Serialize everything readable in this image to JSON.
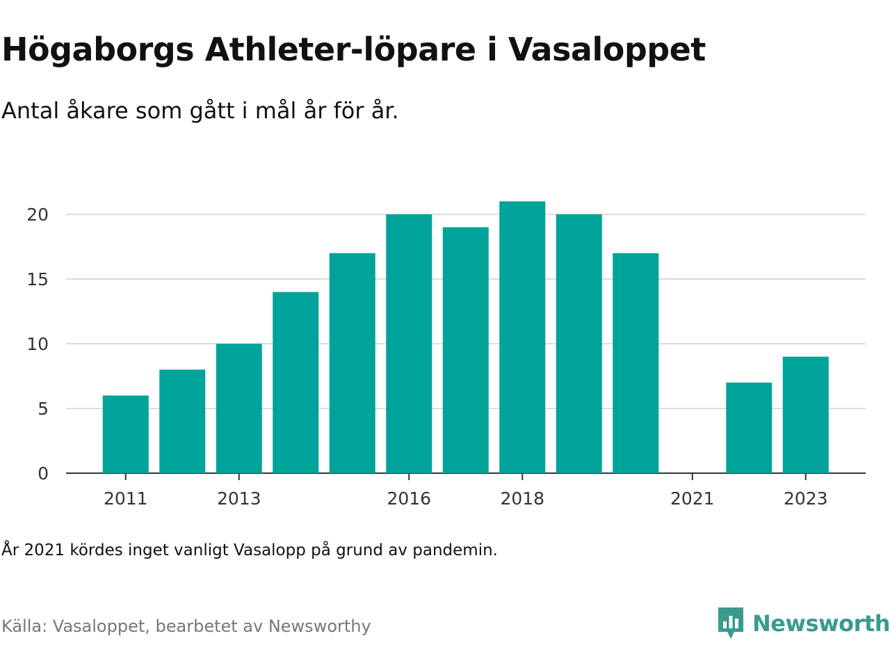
{
  "title": "Högaborgs Athleter-löpare i Vasaloppet",
  "subtitle": "Antal åkare som gått i mål år för år.",
  "note": "År 2021 kördes inget vanligt Vasalopp på grund av pandemin.",
  "source": "Källa: Vasaloppet, bearbetet av Newsworthy",
  "logo": {
    "text": "Newsworthy",
    "icon": "newsworthy-bar-chart-logo-icon",
    "color": "#3a9a8e"
  },
  "colors": {
    "bar": "#00a39a",
    "grid": "#dcdcdc",
    "axis": "#333333"
  },
  "chart_data": {
    "type": "bar",
    "categories": [
      "2011",
      "2012",
      "2013",
      "2014",
      "2015",
      "2016",
      "2017",
      "2018",
      "2019",
      "2020",
      "2021",
      "2022",
      "2023"
    ],
    "values": [
      6,
      8,
      10,
      14,
      17,
      20,
      19,
      21,
      20,
      17,
      0,
      7,
      9
    ],
    "x_tick_labels": [
      "2011",
      "2013",
      "2016",
      "2018",
      "2021",
      "2023"
    ],
    "y_ticks": [
      0,
      5,
      10,
      15,
      20
    ],
    "ylim": [
      0,
      22
    ],
    "xlabel": "",
    "ylabel": "",
    "grid": "horizontal",
    "legend": "none"
  }
}
